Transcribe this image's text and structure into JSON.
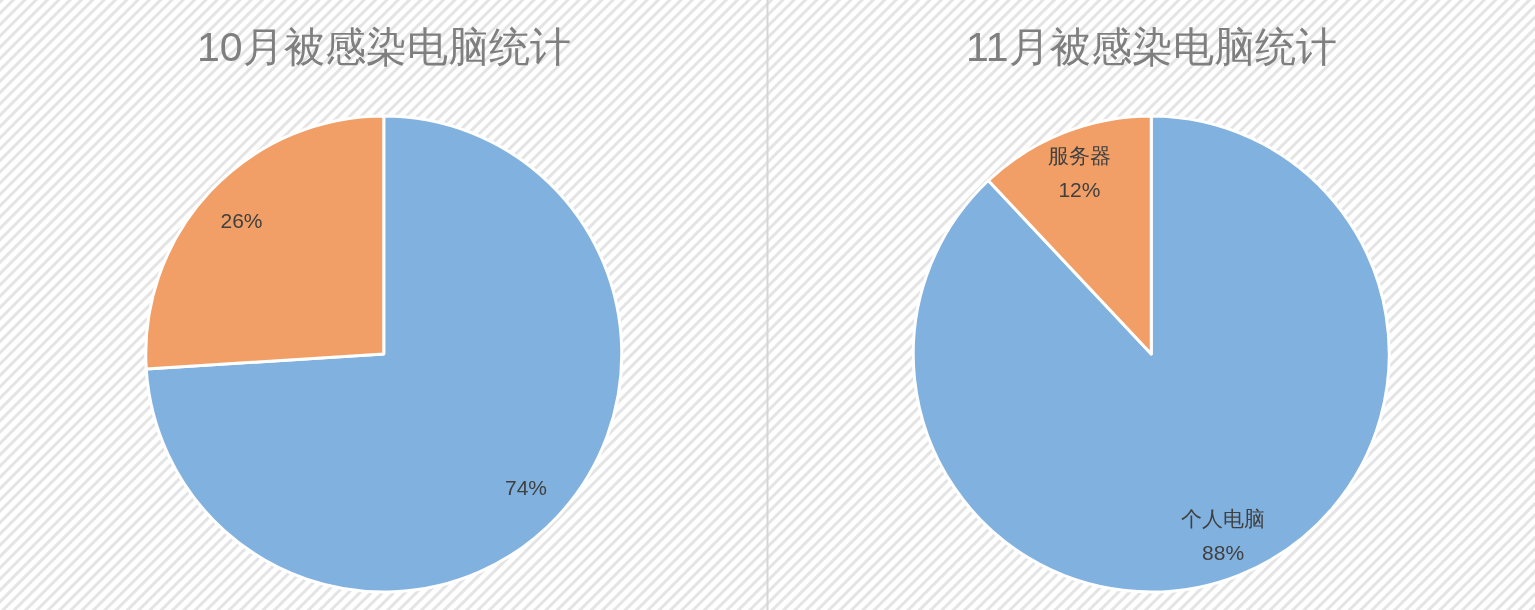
{
  "chart_data": [
    {
      "type": "pie",
      "title": "10月被感染电脑统计",
      "categories": [
        null,
        null
      ],
      "values": [
        74,
        26
      ],
      "colors": [
        "#80b1df",
        "#f19f66"
      ],
      "value_labels": [
        "74%",
        "26%"
      ]
    },
    {
      "type": "pie",
      "title": "11月被感染电脑统计",
      "categories": [
        "个人电脑",
        "服务器"
      ],
      "values": [
        88,
        12
      ],
      "colors": [
        "#80b1df",
        "#f19f66"
      ],
      "value_labels": [
        "88%",
        "12%"
      ]
    }
  ]
}
